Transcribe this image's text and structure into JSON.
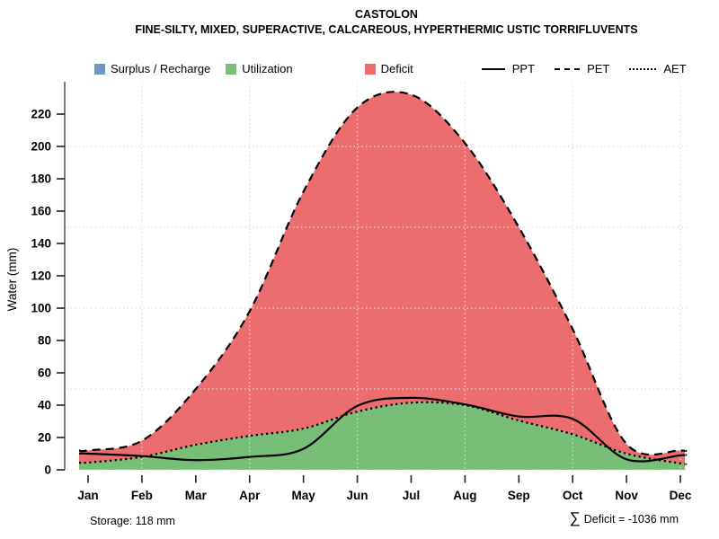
{
  "header": {
    "title": "CASTOLON",
    "subtitle": "FINE-SILTY, MIXED, SUPERACTIVE, CALCAREOUS, HYPERTHERMIC USTIC TORRIFLUVENTS"
  },
  "legend": {
    "areas": [
      {
        "label": "Surplus / Recharge",
        "color": "#7295C2"
      },
      {
        "label": "Utilization",
        "color": "#77BF77"
      },
      {
        "label": "Deficit",
        "color": "#EC6D6E"
      }
    ],
    "lines": [
      {
        "label": "PPT",
        "style": "solid"
      },
      {
        "label": "PET",
        "style": "dashed"
      },
      {
        "label": "AET",
        "style": "dotted"
      }
    ]
  },
  "footer": {
    "storage": "Storage: 118 mm",
    "sum_symbol": "∑",
    "deficit_text": "Deficit = -1036 mm"
  },
  "chart_data": {
    "type": "area",
    "title": "CASTOLON",
    "ylabel": "Water (mm)",
    "x_categories": [
      "Jan",
      "Feb",
      "Mar",
      "Apr",
      "May",
      "Jun",
      "Jul",
      "Aug",
      "Sep",
      "Oct",
      "Nov",
      "Dec"
    ],
    "y_ticks": [
      0,
      20,
      40,
      60,
      80,
      100,
      120,
      140,
      160,
      180,
      200,
      220
    ],
    "ylim": [
      0,
      240
    ],
    "grid": {
      "h_mm": [
        0,
        50,
        100,
        150,
        200
      ],
      "v_month_indexes": [
        1,
        3,
        5,
        7,
        9,
        11
      ]
    },
    "series": [
      {
        "name": "PPT",
        "line": "solid",
        "values": [
          10,
          8.5,
          6,
          8,
          13,
          39.5,
          44.5,
          40.5,
          33,
          31.5,
          6.5,
          9
        ]
      },
      {
        "name": "PET",
        "line": "dashed",
        "values": [
          12,
          18,
          50,
          98,
          172,
          224,
          232,
          202,
          150,
          87,
          16,
          12
        ]
      },
      {
        "name": "AET",
        "line": "dotted",
        "values": [
          4.5,
          8,
          15.5,
          21,
          25.5,
          36,
          41.5,
          40,
          30.5,
          22,
          10,
          4
        ]
      }
    ],
    "areas": [
      {
        "name": "utilization",
        "between": [
          "0",
          "AET"
        ],
        "color": "#77BF77"
      },
      {
        "name": "deficit",
        "between": [
          "AET",
          "PET"
        ],
        "color": "#EC6D6E"
      }
    ],
    "annotations": {
      "storage_mm": 118,
      "deficit_sum_mm": -1036
    }
  }
}
